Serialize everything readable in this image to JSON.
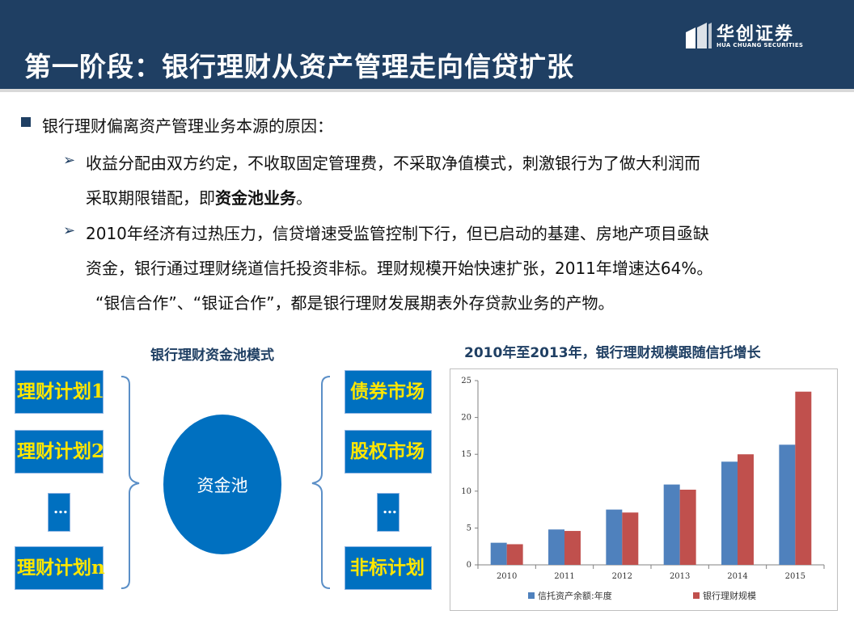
{
  "header": {
    "title": "第一阶段：银行理财从资产管理走向信贷扩张",
    "logo_cn": "华创证券",
    "logo_en": "HUA CHUANG SECURITIES"
  },
  "bullets": {
    "main": "银行理财偏离资产管理业务本源的原因：",
    "sub1_line1": "收益分配由双方约定，不收取固定管理费，不采取净值模式，刺激银行为了做大利润而",
    "sub1_line2_pre": "采取期限错配，即",
    "sub1_line2_bold": "资金池业务",
    "sub1_line2_post": "。",
    "sub2_line1": "2010年经济有过热压力，信贷增速受监管控制下行，但已启动的基建、房地产项目亟缺",
    "sub2_line2": "资金，银行通过理财绕道信托投资非标。理财规模开始快速扩张，2011年增速达64%。",
    "sub2_line3": "“银信合作”、“银证合作”，都是银行理财发展期表外存贷款业务的产物。"
  },
  "diagram": {
    "title": "银行理财资金池模式",
    "left_items": [
      "理财计划1",
      "理财计划2",
      "…",
      "理财计划n"
    ],
    "center": "资金池",
    "right_items": [
      "债券市场",
      "股权市场",
      "…",
      "非标计划"
    ]
  },
  "chart_title": "2010年至2013年，银行理财规模跟随信托增长",
  "chart_data": {
    "type": "bar",
    "categories": [
      "2010",
      "2011",
      "2012",
      "2013",
      "2014",
      "2015"
    ],
    "series": [
      {
        "name": "信托资产余额:年度",
        "values": [
          3.0,
          4.8,
          7.5,
          10.9,
          14.0,
          16.3
        ],
        "color": "#4f81bd"
      },
      {
        "name": "银行理财规模",
        "values": [
          2.8,
          4.6,
          7.1,
          10.2,
          15.0,
          23.5
        ],
        "color": "#c0504d"
      }
    ],
    "ylim": [
      0,
      25
    ],
    "yticks": [
      "0",
      "5",
      "10",
      "15",
      "20",
      "25"
    ],
    "legend": "bottom",
    "grid": false
  }
}
